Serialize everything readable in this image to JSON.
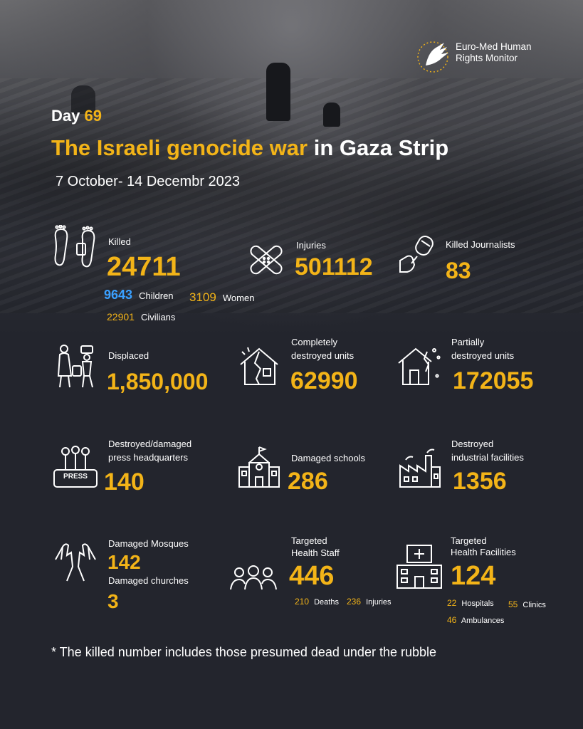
{
  "header": {
    "logo_line1": "Euro-Med Human",
    "logo_line2": "Rights Monitor",
    "day_label": "Day",
    "day_number": "69",
    "title_highlight": "The Israeli genocide war",
    "title_rest": "in Gaza Strip",
    "date_range": "7 October- 14 Decembr 2023"
  },
  "stats": {
    "killed": {
      "label": "Killed",
      "value": "24711",
      "children_value": "9643",
      "children_label": "Children",
      "women_value": "3109",
      "women_label": "Women",
      "civilians_value": "22901",
      "civilians_label": "Civilians"
    },
    "injuries": {
      "label": "Injuries",
      "value": "501112"
    },
    "journalists": {
      "label": "Killed Journalists",
      "value": "83"
    },
    "displaced": {
      "label": "Displaced",
      "value": "1,850,000"
    },
    "destroyed_units": {
      "label1": "Completely",
      "label2": "destroyed  units",
      "value": "62990"
    },
    "partial_units": {
      "label1": "Partially",
      "label2": "destroyed units",
      "value": "172055"
    },
    "press_hq": {
      "label1": "Destroyed/damaged",
      "label2": "press headquarters",
      "value": "140",
      "icon_text": "PRESS"
    },
    "schools": {
      "label": "Damaged schools",
      "value": "286"
    },
    "industrial": {
      "label1": "Destroyed",
      "label2": "industrial facilities",
      "value": "1356"
    },
    "mosques": {
      "label": "Damaged Mosques",
      "value": "142",
      "churches_label": "Damaged churches",
      "churches_value": "3"
    },
    "health_staff": {
      "label1": "Targeted",
      "label2": "Health Staff",
      "value": "446",
      "deaths_value": "210",
      "deaths_label": "Deaths",
      "injuries_value": "236",
      "injuries_label": "Injuries"
    },
    "health_facilities": {
      "label1": "Targeted",
      "label2": "Health Facilities",
      "value": "124",
      "hospitals_value": "22",
      "hospitals_label": "Hospitals",
      "clinics_value": "55",
      "clinics_label": "Clinics",
      "ambulances_value": "46",
      "ambulances_label": "Ambulances"
    }
  },
  "footnote": "* The killed number includes those presumed dead under the rubble",
  "colors": {
    "accent": "#f3b418",
    "children": "#3aa0ff",
    "background": "#23252d"
  }
}
